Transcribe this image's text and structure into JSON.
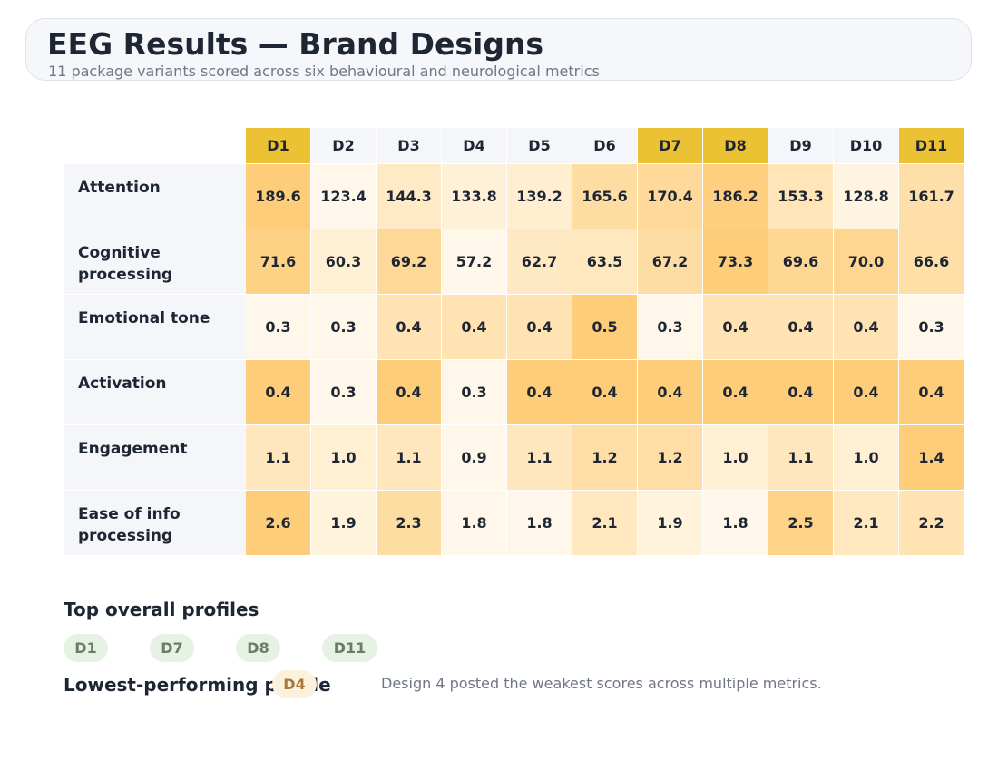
{
  "header": {
    "title": "EEG Results — Brand Designs",
    "subtitle": "11 package variants scored across six behavioural and neurological metrics"
  },
  "chart_data": {
    "type": "heatmap",
    "title": "EEG Results — Brand Designs",
    "columns": [
      "D1",
      "D2",
      "D3",
      "D4",
      "D5",
      "D6",
      "D7",
      "D8",
      "D9",
      "D10",
      "D11"
    ],
    "highlighted_columns": [
      "D1",
      "D7",
      "D8",
      "D11"
    ],
    "rows": [
      {
        "metric": "Attention",
        "values": [
          189.6,
          123.4,
          144.3,
          133.8,
          139.2,
          165.6,
          170.4,
          186.2,
          153.3,
          128.8,
          161.7
        ],
        "labels": [
          "189.6",
          "123.4",
          "144.3",
          "133.8",
          "139.2",
          "165.6",
          "170.4",
          "186.2",
          "153.3",
          "128.8",
          "161.7"
        ],
        "range": [
          123.4,
          189.6
        ]
      },
      {
        "metric": "Cognitive processing",
        "values": [
          71.6,
          60.3,
          69.2,
          57.2,
          62.7,
          63.5,
          67.2,
          73.3,
          69.6,
          70.0,
          66.6
        ],
        "labels": [
          "71.6",
          "60.3",
          "69.2",
          "57.2",
          "62.7",
          "63.5",
          "67.2",
          "73.3",
          "69.6",
          "70.0",
          "66.6"
        ],
        "range": [
          57.2,
          73.3
        ]
      },
      {
        "metric": "Emotional tone",
        "values": [
          0.3,
          0.3,
          0.4,
          0.4,
          0.4,
          0.5,
          0.3,
          0.4,
          0.4,
          0.4,
          0.3
        ],
        "labels": [
          "0.3",
          "0.3",
          "0.4",
          "0.4",
          "0.4",
          "0.5",
          "0.3",
          "0.4",
          "0.4",
          "0.4",
          "0.3"
        ],
        "range": [
          0.3,
          0.5
        ]
      },
      {
        "metric": "Activation",
        "values": [
          0.4,
          0.3,
          0.4,
          0.3,
          0.4,
          0.4,
          0.4,
          0.4,
          0.4,
          0.4,
          0.4
        ],
        "labels": [
          "0.4",
          "0.3",
          "0.4",
          "0.3",
          "0.4",
          "0.4",
          "0.4",
          "0.4",
          "0.4",
          "0.4",
          "0.4"
        ],
        "range": [
          0.3,
          0.4
        ]
      },
      {
        "metric": "Engagement",
        "values": [
          1.1,
          1.0,
          1.1,
          0.9,
          1.1,
          1.2,
          1.2,
          1.0,
          1.1,
          1.0,
          1.4
        ],
        "labels": [
          "1.1",
          "1.0",
          "1.1",
          "0.9",
          "1.1",
          "1.2",
          "1.2",
          "1.0",
          "1.1",
          "1.0",
          "1.4"
        ],
        "range": [
          0.9,
          1.4
        ]
      },
      {
        "metric": "Ease of info processing",
        "values": [
          2.6,
          1.9,
          2.3,
          1.8,
          1.8,
          2.1,
          1.9,
          1.8,
          2.5,
          2.1,
          2.2
        ],
        "labels": [
          "2.6",
          "1.9",
          "2.3",
          "1.8",
          "1.8",
          "2.1",
          "1.9",
          "1.8",
          "2.5",
          "2.1",
          "2.2"
        ],
        "range": [
          1.8,
          2.6
        ]
      }
    ],
    "color_scale": {
      "low": "#fff8ea",
      "high": "#fecd79"
    },
    "highlight_color": "#ebc234"
  },
  "summary": {
    "top_title": "Top overall profiles",
    "top_designs": [
      "D1",
      "D7",
      "D8",
      "D11"
    ],
    "lowest_title": "Lowest-performing profile",
    "lowest_design": "D4",
    "lowest_note": "Design 4 posted the weakest scores across multiple metrics."
  }
}
